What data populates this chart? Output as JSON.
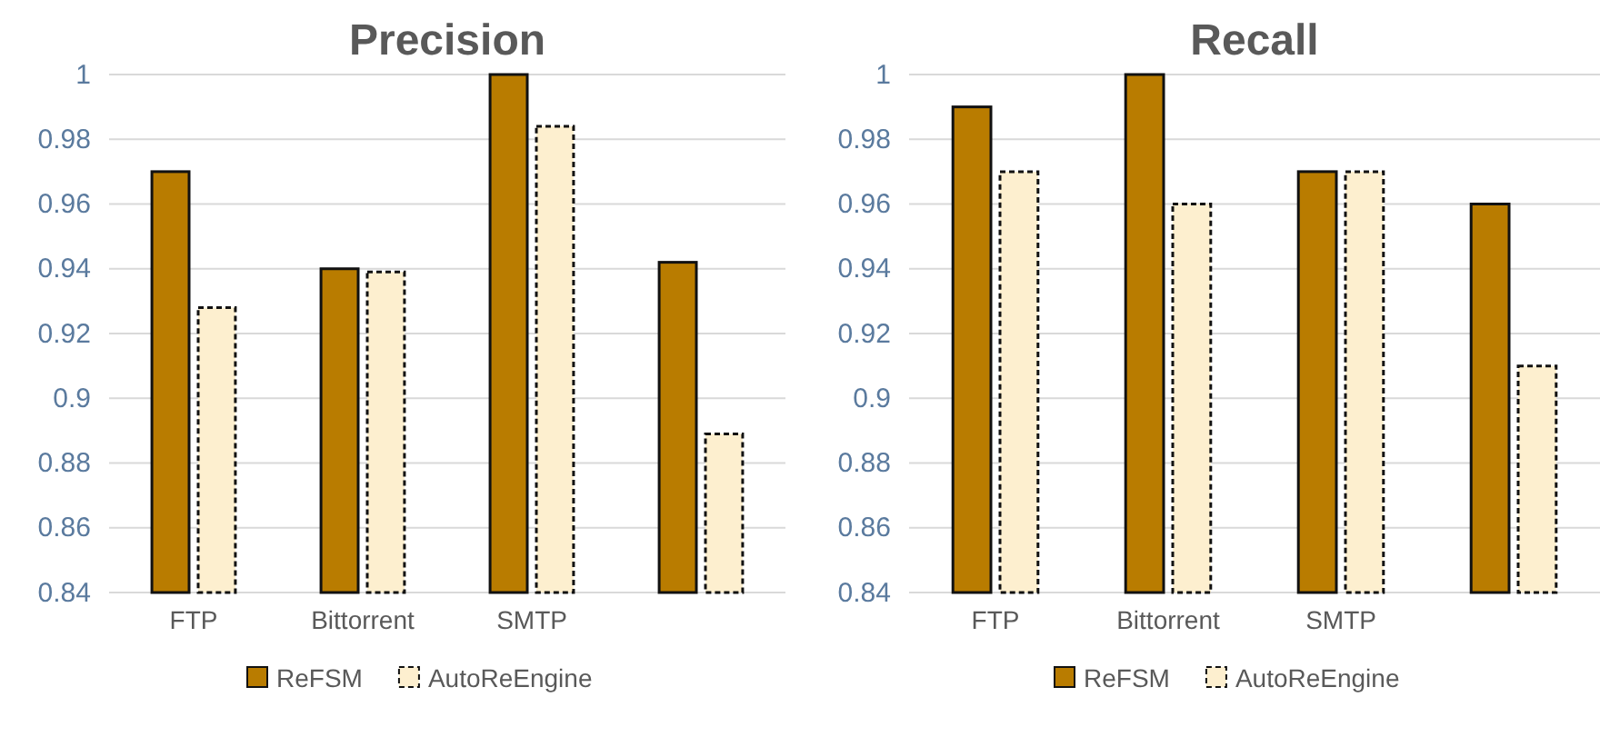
{
  "chart_data": [
    {
      "type": "bar",
      "title": "Precision",
      "categories": [
        "FTP",
        "Bittorrent",
        "SMTP",
        null
      ],
      "series": [
        {
          "name": "ReFSM",
          "color": "#b97c00",
          "values": [
            0.97,
            0.94,
            1.0,
            0.942
          ]
        },
        {
          "name": "AutoReEngine",
          "color": "#fdefcf",
          "line_style": "dashed",
          "values": [
            0.928,
            0.939,
            0.984,
            0.889
          ]
        }
      ],
      "ylim": [
        0.84,
        1.0
      ],
      "yticks": [
        0.84,
        0.86,
        0.88,
        0.9,
        0.92,
        0.94,
        0.96,
        0.98,
        1
      ],
      "grid": "y",
      "legend": "bottom"
    },
    {
      "type": "bar",
      "title": "Recall",
      "categories": [
        "FTP",
        "Bittorrent",
        "SMTP",
        null
      ],
      "series": [
        {
          "name": "ReFSM",
          "color": "#b97c00",
          "values": [
            0.99,
            1.0,
            0.97,
            0.96
          ]
        },
        {
          "name": "AutoReEngine",
          "color": "#fdefcf",
          "line_style": "dashed",
          "values": [
            0.97,
            0.96,
            0.97,
            0.91
          ]
        }
      ],
      "ylim": [
        0.84,
        1.0
      ],
      "yticks": [
        0.84,
        0.86,
        0.88,
        0.9,
        0.92,
        0.94,
        0.96,
        0.98,
        1
      ],
      "grid": "y",
      "legend": "bottom"
    }
  ]
}
